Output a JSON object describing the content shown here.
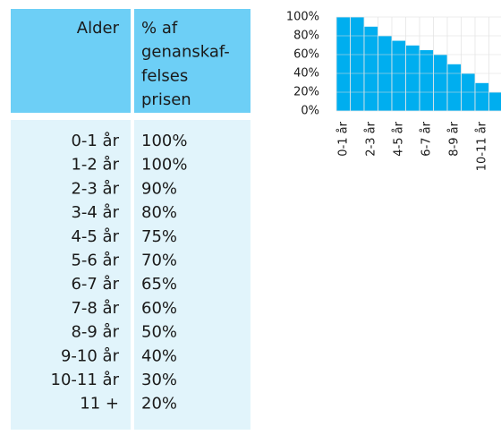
{
  "table": {
    "header": [
      "Alder",
      [
        "% af",
        "genanskaf-",
        "felses",
        "prisen"
      ]
    ],
    "rows": [
      [
        "0-1 år",
        "100%"
      ],
      [
        "1-2 år",
        "100%"
      ],
      [
        "2-3 år",
        "90%"
      ],
      [
        "3-4 år",
        "80%"
      ],
      [
        "4-5 år",
        "75%"
      ],
      [
        "5-6 år",
        "70%"
      ],
      [
        "6-7 år",
        "65%"
      ],
      [
        "7-8 år",
        "60%"
      ],
      [
        "8-9 år",
        "50%"
      ],
      [
        "9-10 år",
        "40%"
      ],
      [
        "10-11 år",
        "30%"
      ],
      [
        "11 +",
        "20%"
      ]
    ]
  },
  "chart_data": {
    "type": "bar",
    "color": "#00aeef",
    "categories": [
      "0-1 år",
      null,
      "2-3 år",
      null,
      "4-5 år",
      null,
      "6-7 år",
      null,
      "8-9 år",
      null,
      "10-11 år",
      null
    ],
    "values": [
      100,
      100,
      90,
      80,
      75,
      70,
      65,
      60,
      50,
      40,
      30,
      20
    ],
    "ylim": [
      0,
      100
    ],
    "yticks": [
      {
        "value": 0,
        "label": "0%"
      },
      {
        "value": 20,
        "label": "20%"
      },
      {
        "value": 40,
        "label": "40%"
      },
      {
        "value": 60,
        "label": "60%"
      },
      {
        "value": 80,
        "label": "80%"
      },
      {
        "value": 100,
        "label": "100%"
      }
    ],
    "grid": true
  }
}
